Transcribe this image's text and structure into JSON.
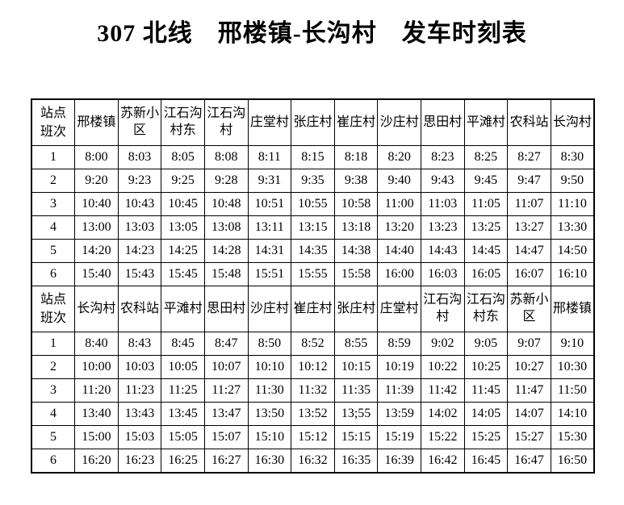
{
  "page": {
    "title": "307 北线　邢楼镇-长沟村　发车时刻表"
  },
  "table": {
    "corner": {
      "top": "站点",
      "bottom": "班次"
    },
    "sections": [
      {
        "stations": [
          "邢楼镇",
          "苏新小区",
          "江石沟村东",
          "江石沟村",
          "庄堂村",
          "张庄村",
          "崔庄村",
          "沙庄村",
          "思田村",
          "平滩村",
          "农科站",
          "长沟村"
        ],
        "rows": [
          {
            "run": "1",
            "times": [
              "8:00",
              "8:03",
              "8:05",
              "8:08",
              "8:11",
              "8:15",
              "8:18",
              "8:20",
              "8:23",
              "8:25",
              "8:27",
              "8:30"
            ]
          },
          {
            "run": "2",
            "times": [
              "9:20",
              "9:23",
              "9:25",
              "9:28",
              "9:31",
              "9:35",
              "9:38",
              "9:40",
              "9:43",
              "9:45",
              "9:47",
              "9:50"
            ]
          },
          {
            "run": "3",
            "times": [
              "10:40",
              "10:43",
              "10:45",
              "10:48",
              "10:51",
              "10:55",
              "10:58",
              "11:00",
              "11:03",
              "11:05",
              "11:07",
              "11:10"
            ]
          },
          {
            "run": "4",
            "times": [
              "13:00",
              "13:03",
              "13:05",
              "13:08",
              "13:11",
              "13:15",
              "13:18",
              "13:20",
              "13:23",
              "13:25",
              "13:27",
              "13:30"
            ]
          },
          {
            "run": "5",
            "times": [
              "14:20",
              "14:23",
              "14:25",
              "14:28",
              "14:31",
              "14:35",
              "14:38",
              "14:40",
              "14:43",
              "14:45",
              "14:47",
              "14:50"
            ]
          },
          {
            "run": "6",
            "times": [
              "15:40",
              "15:43",
              "15:45",
              "15:48",
              "15:51",
              "15:55",
              "15:58",
              "16:00",
              "16:03",
              "16:05",
              "16:07",
              "16:10"
            ]
          }
        ]
      },
      {
        "stations": [
          "长沟村",
          "农科站",
          "平滩村",
          "思田村",
          "沙庄村",
          "崔庄村",
          "张庄村",
          "庄堂村",
          "江石沟村",
          "江石沟村东",
          "苏新小区",
          "邢楼镇"
        ],
        "rows": [
          {
            "run": "1",
            "times": [
              "8:40",
              "8:43",
              "8:45",
              "8:47",
              "8:50",
              "8:52",
              "8:55",
              "8:59",
              "9:02",
              "9:05",
              "9:07",
              "9:10"
            ]
          },
          {
            "run": "2",
            "times": [
              "10:00",
              "10:03",
              "10:05",
              "10:07",
              "10:10",
              "10:12",
              "10:15",
              "10:19",
              "10:22",
              "10:25",
              "10:27",
              "10:30"
            ]
          },
          {
            "run": "3",
            "times": [
              "11:20",
              "11:23",
              "11:25",
              "11:27",
              "11:30",
              "11:32",
              "11:35",
              "11:39",
              "11:42",
              "11:45",
              "11:47",
              "11:50"
            ]
          },
          {
            "run": "4",
            "times": [
              "13:40",
              "13:43",
              "13:45",
              "13:47",
              "13:50",
              "13:52",
              "13;55",
              "13:59",
              "14:02",
              "14:05",
              "14:07",
              "14:10"
            ]
          },
          {
            "run": "5",
            "times": [
              "15:00",
              "15:03",
              "15:05",
              "15:07",
              "15:10",
              "15:12",
              "15:15",
              "15:19",
              "15:22",
              "15:25",
              "15:27",
              "15:30"
            ]
          },
          {
            "run": "6",
            "times": [
              "16:20",
              "16:23",
              "16:25",
              "16:27",
              "16:30",
              "16:32",
              "16:35",
              "16:39",
              "16:42",
              "16:45",
              "16:47",
              "16:50"
            ]
          }
        ]
      }
    ]
  }
}
